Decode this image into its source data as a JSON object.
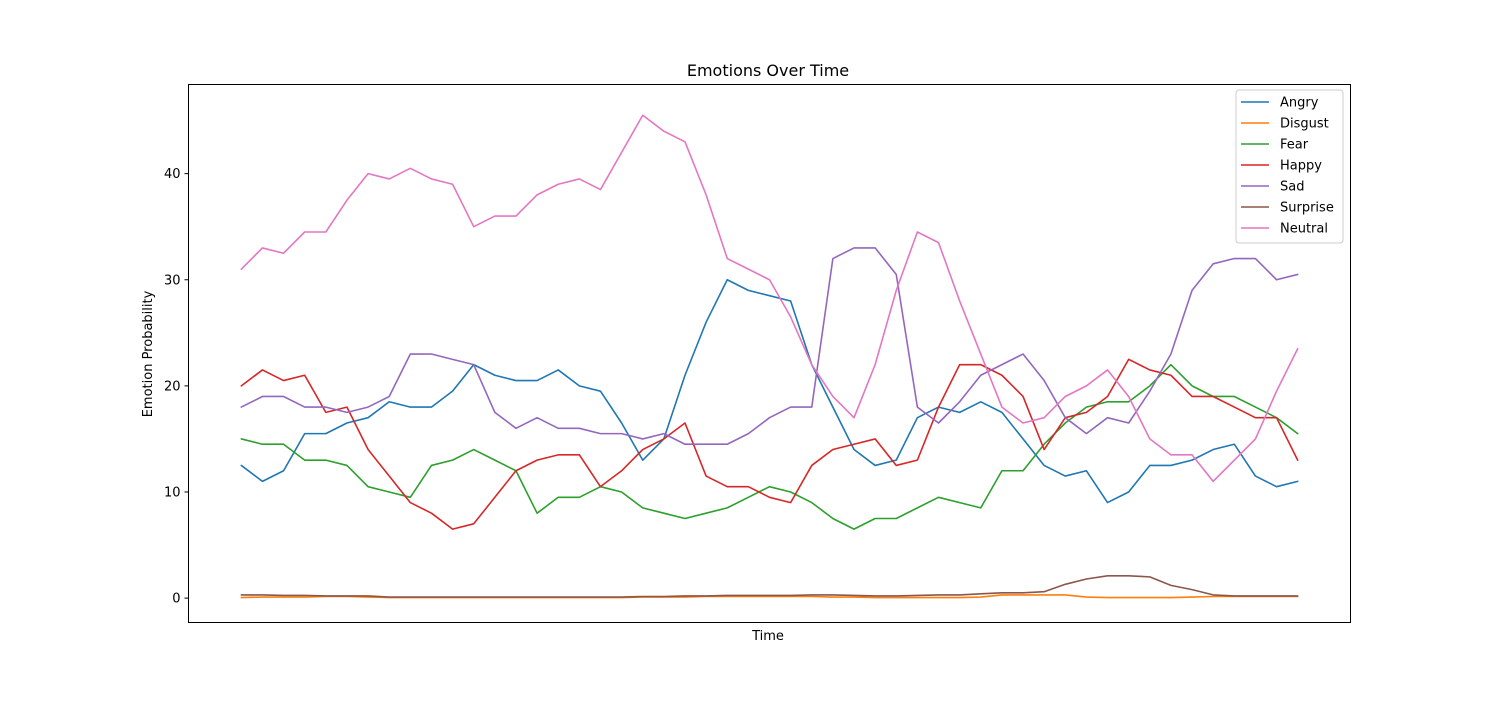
{
  "chart_data": {
    "type": "line",
    "title": "Emotions Over Time",
    "xlabel": "Time",
    "ylabel": "Emotion Probability",
    "ylim": [
      -2.3,
      48.4
    ],
    "xlim": [
      -5,
      105
    ],
    "yticks": [
      0,
      10,
      20,
      30,
      40
    ],
    "show_xticks": false,
    "grid": false,
    "legend_position": "upper right",
    "x": [
      0,
      2,
      4,
      6,
      8,
      10,
      12,
      14,
      16,
      18,
      20,
      22,
      24,
      26,
      28,
      30,
      32,
      34,
      36,
      38,
      40,
      42,
      44,
      46,
      48,
      50,
      52,
      54,
      56,
      58,
      60,
      62,
      64,
      66,
      68,
      70,
      72,
      74,
      76,
      78,
      80,
      82,
      84,
      86,
      88,
      90,
      92,
      94,
      96,
      98,
      100
    ],
    "series": [
      {
        "name": "Angry",
        "color": "#1f77b4",
        "values": [
          12.5,
          11,
          12,
          15.5,
          15.5,
          16.5,
          17,
          18.5,
          18,
          18,
          19.5,
          22,
          21,
          20.5,
          20.5,
          21.5,
          20,
          19.5,
          16.5,
          13,
          15,
          21,
          26,
          30,
          29,
          28.5,
          28,
          22,
          18,
          14,
          12.5,
          13,
          17,
          18,
          17.5,
          18.5,
          17.5,
          15,
          12.5,
          11.5,
          12,
          9,
          10,
          12.5,
          12.5,
          13,
          14,
          14.5,
          11.5,
          10.5,
          11
        ]
      },
      {
        "name": "Disgust",
        "color": "#ff7f0e",
        "values": [
          0.05,
          0.1,
          0.1,
          0.1,
          0.15,
          0.15,
          0.1,
          0.05,
          0.05,
          0.05,
          0.05,
          0.05,
          0.05,
          0.05,
          0.05,
          0.05,
          0.05,
          0.05,
          0.05,
          0.1,
          0.1,
          0.1,
          0.15,
          0.15,
          0.15,
          0.15,
          0.15,
          0.15,
          0.1,
          0.1,
          0.05,
          0.05,
          0.05,
          0.05,
          0.05,
          0.1,
          0.3,
          0.3,
          0.3,
          0.3,
          0.1,
          0.05,
          0.05,
          0.05,
          0.05,
          0.1,
          0.15,
          0.15,
          0.15,
          0.15,
          0.15
        ]
      },
      {
        "name": "Fear",
        "color": "#2ca02c",
        "values": [
          15,
          14.5,
          14.5,
          13,
          13,
          12.5,
          10.5,
          10,
          9.5,
          12.5,
          13,
          14,
          13,
          12,
          8,
          9.5,
          9.5,
          10.5,
          10,
          8.5,
          8,
          7.5,
          8,
          8.5,
          9.5,
          10.5,
          10,
          9,
          7.5,
          6.5,
          7.5,
          7.5,
          8.5,
          9.5,
          9,
          8.5,
          12,
          12,
          14.5,
          16.5,
          18,
          18.5,
          18.5,
          20,
          22,
          20,
          19,
          19,
          18,
          17,
          15.5
        ]
      },
      {
        "name": "Happy",
        "color": "#d62728",
        "values": [
          20,
          21.5,
          20.5,
          21,
          17.5,
          18,
          14,
          11.5,
          9,
          8,
          6.5,
          7,
          9.5,
          12,
          13,
          13.5,
          13.5,
          10.5,
          12,
          14,
          15,
          16.5,
          11.5,
          10.5,
          10.5,
          9.5,
          9,
          12.5,
          14,
          14.5,
          15,
          12.5,
          13,
          18,
          22,
          22,
          21,
          19,
          14,
          17,
          17.5,
          19,
          22.5,
          21.5,
          21,
          19,
          19,
          18,
          17,
          17,
          13
        ]
      },
      {
        "name": "Sad",
        "color": "#9467bd",
        "values": [
          18,
          19,
          19,
          18,
          18,
          17.5,
          18,
          19,
          23,
          23,
          22.5,
          22,
          17.5,
          16,
          17,
          16,
          16,
          15.5,
          15.5,
          15,
          15.5,
          14.5,
          14.5,
          14.5,
          15.5,
          17,
          18,
          18,
          32,
          33,
          33,
          30.5,
          18,
          16.5,
          18.5,
          21,
          22,
          23,
          20.5,
          17,
          15.5,
          17,
          16.5,
          19.5,
          23,
          29,
          31.5,
          32,
          32,
          30,
          30.5
        ]
      },
      {
        "name": "Surprise",
        "color": "#8c564b",
        "values": [
          0.3,
          0.3,
          0.25,
          0.25,
          0.2,
          0.2,
          0.2,
          0.1,
          0.1,
          0.1,
          0.1,
          0.1,
          0.1,
          0.1,
          0.1,
          0.1,
          0.1,
          0.1,
          0.1,
          0.15,
          0.15,
          0.2,
          0.2,
          0.25,
          0.25,
          0.25,
          0.25,
          0.3,
          0.3,
          0.25,
          0.2,
          0.2,
          0.25,
          0.3,
          0.3,
          0.4,
          0.5,
          0.5,
          0.6,
          1.3,
          1.8,
          2.1,
          2.1,
          2,
          1.2,
          0.8,
          0.3,
          0.2,
          0.2,
          0.2,
          0.2
        ]
      },
      {
        "name": "Neutral",
        "color": "#e377c2",
        "values": [
          31,
          33,
          32.5,
          34.5,
          34.5,
          37.5,
          40,
          39.5,
          40.5,
          39.5,
          39,
          35,
          36,
          36,
          38,
          39,
          39.5,
          38.5,
          42,
          45.5,
          44,
          43,
          38,
          32,
          31,
          30,
          26.5,
          22,
          19,
          17,
          22,
          29,
          34.5,
          33.5,
          28,
          23,
          18,
          16.5,
          17,
          19,
          20,
          21.5,
          19,
          15,
          13.5,
          13.5,
          11,
          13,
          15,
          19.5,
          23.5
        ]
      }
    ]
  }
}
